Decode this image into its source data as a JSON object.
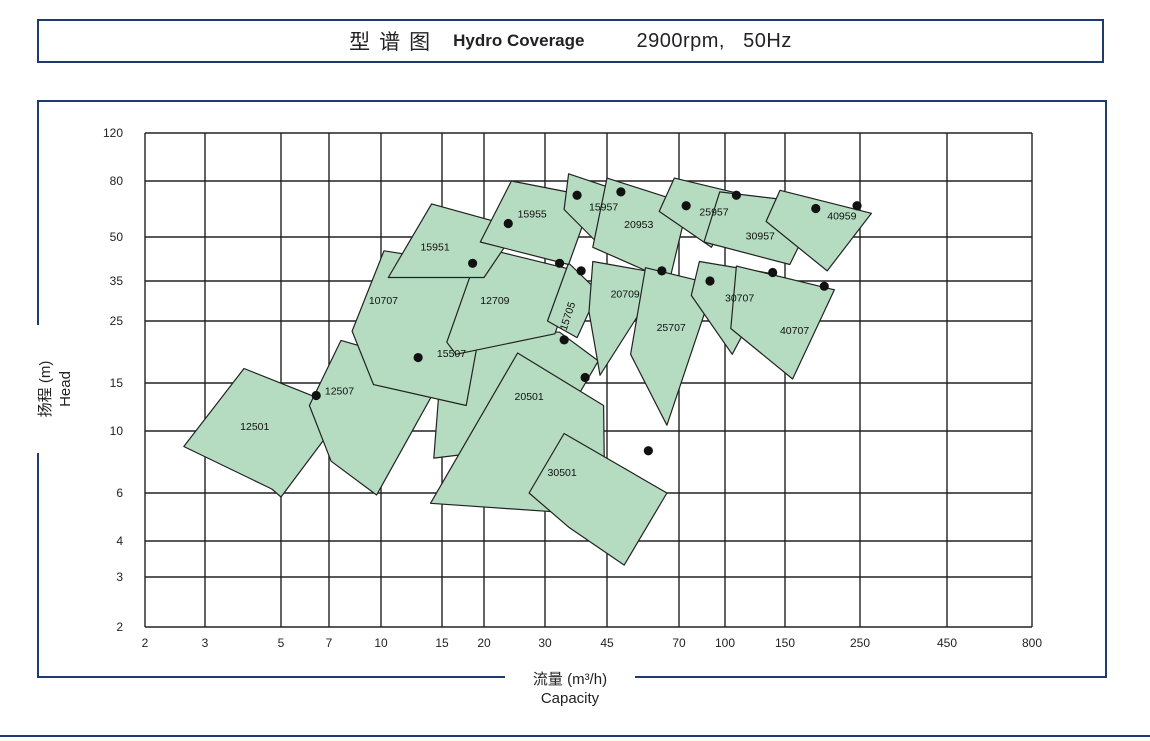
{
  "header": {
    "title_zh": "型谱图",
    "title_en": "Hydro Coverage",
    "spec": "2900rpm,   50Hz"
  },
  "chart_data": {
    "type": "area",
    "title": "Hydro Coverage 2900rpm, 50Hz",
    "xlabel_zh": "流量 (m³/h)",
    "xlabel_en": "Capacity",
    "ylabel_zh": "扬程 (m)",
    "ylabel_en": "Head",
    "x_ticks": [
      2,
      3,
      5,
      7,
      10,
      15,
      20,
      30,
      45,
      70,
      100,
      150,
      250,
      450,
      800
    ],
    "y_ticks": [
      2,
      3,
      4,
      6,
      10,
      15,
      25,
      35,
      50,
      80,
      120
    ],
    "x_range": [
      2,
      800
    ],
    "y_range": [
      2,
      120
    ],
    "grid": true,
    "fill_color": "#b5dcc0",
    "edge_color": "#222222",
    "series": [
      {
        "model": "12501",
        "label_at": [
          3.8,
          10.1
        ],
        "duty_point": [
          6.4,
          13.5
        ],
        "polygon": [
          [
            2.6,
            8.8
          ],
          [
            3.9,
            16.9
          ],
          [
            7.9,
            12.0
          ],
          [
            5.0,
            5.8
          ],
          [
            4.7,
            6.2
          ]
        ]
      },
      {
        "model": "12507",
        "label_at": [
          6.8,
          13.6
        ],
        "duty_point": [
          12.8,
          18.5
        ],
        "polygon": [
          [
            6.1,
            12.4
          ],
          [
            7.6,
            21.3
          ],
          [
            15.4,
            16.6
          ],
          [
            9.7,
            5.9
          ],
          [
            7.1,
            7.8
          ]
        ]
      },
      {
        "model": "15507",
        "label_at": [
          14.5,
          18.6
        ],
        "duty_point": [
          34.0,
          21.4
        ],
        "polygon": [
          [
            14.2,
            8.0
          ],
          [
            15.2,
            23.5
          ],
          [
            33.0,
            22.8
          ],
          [
            42.5,
            18.0
          ],
          [
            31.0,
            9.0
          ]
        ]
      },
      {
        "model": "20501",
        "label_at": [
          24.5,
          13.0
        ],
        "duty_point": [
          39.0,
          15.7
        ],
        "polygon": [
          [
            13.9,
            5.5
          ],
          [
            25.0,
            19.2
          ],
          [
            44.0,
            12.4
          ],
          [
            44.5,
            3.8
          ],
          [
            33.0,
            5.1
          ]
        ]
      },
      {
        "model": "30501",
        "label_at": [
          30.5,
          6.9
        ],
        "duty_point": [
          58.0,
          8.5
        ],
        "polygon": [
          [
            27.0,
            6.0
          ],
          [
            34.0,
            9.8
          ],
          [
            65.0,
            6.0
          ],
          [
            50.0,
            3.3
          ],
          [
            35.0,
            4.5
          ]
        ]
      },
      {
        "model": "10707",
        "label_at": [
          9.2,
          28.9
        ],
        "duty_point": [
          18.5,
          40.4
        ],
        "polygon": [
          [
            8.2,
            23.0
          ],
          [
            10.2,
            44.7
          ],
          [
            21.0,
            39.0
          ],
          [
            17.7,
            12.4
          ],
          [
            9.5,
            14.8
          ]
        ]
      },
      {
        "model": "12709",
        "label_at": [
          19.5,
          28.9
        ],
        "duty_point": [
          33.0,
          40.4
        ],
        "polygon": [
          [
            15.5,
            21.0
          ],
          [
            19.5,
            46.0
          ],
          [
            37.0,
            38.0
          ],
          [
            32.0,
            22.5
          ],
          [
            16.5,
            19.0
          ]
        ]
      },
      {
        "model": "15705",
        "label_at": [
          34.5,
          23.0
        ],
        "duty_point": [
          38.0,
          38.0
        ],
        "polygon": [
          [
            30.5,
            25.0
          ],
          [
            35.0,
            40.5
          ],
          [
            42.5,
            32.0
          ],
          [
            37.0,
            21.8
          ]
        ]
      },
      {
        "model": "15951",
        "label_at": [
          13.0,
          44.8
        ],
        "duty_point": [
          23.5,
          56.0
        ],
        "polygon": [
          [
            10.5,
            36.0
          ],
          [
            14.0,
            66.0
          ],
          [
            25.0,
            54.0
          ],
          [
            20.0,
            36.0
          ]
        ]
      },
      {
        "model": "15955",
        "label_at": [
          25.0,
          59.0
        ],
        "duty_point": [
          37.0,
          71.0
        ],
        "polygon": [
          [
            19.5,
            48.0
          ],
          [
            24.0,
            80.0
          ],
          [
            41.0,
            70.0
          ],
          [
            35.0,
            40.0
          ]
        ]
      },
      {
        "model": "15957",
        "label_at": [
          40.0,
          62.5
        ],
        "duty_point": [
          49.0,
          73.0
        ],
        "polygon": [
          [
            34.0,
            63.0
          ],
          [
            35.0,
            85.0
          ],
          [
            51.0,
            72.0
          ],
          [
            42.0,
            48.0
          ]
        ]
      },
      {
        "model": "20953",
        "label_at": [
          50.0,
          54.0
        ],
        "duty_point": [
          74.0,
          65.0
        ],
        "polygon": [
          [
            41.0,
            46.0
          ],
          [
            45.0,
            82.0
          ],
          [
            75.0,
            66.0
          ],
          [
            66.0,
            35.0
          ]
        ]
      },
      {
        "model": "20709",
        "label_at": [
          46.0,
          30.5
        ],
        "duty_point": [
          63.0,
          38.0
        ],
        "polygon": [
          [
            40.0,
            27.0
          ],
          [
            41.0,
            41.0
          ],
          [
            64.0,
            37.0
          ],
          [
            43.0,
            16.0
          ]
        ]
      },
      {
        "model": "25957",
        "label_at": [
          82.0,
          60.0
        ],
        "duty_point": [
          108.0,
          71.0
        ],
        "polygon": [
          [
            62.0,
            62.0
          ],
          [
            68.0,
            82.0
          ],
          [
            110.0,
            72.0
          ],
          [
            90.0,
            46.0
          ]
        ]
      },
      {
        "model": "25707",
        "label_at": [
          61.0,
          23.0
        ],
        "duty_point": [
          89.0,
          35.0
        ],
        "polygon": [
          [
            52.0,
            19.0
          ],
          [
            57.0,
            39.0
          ],
          [
            92.0,
            34.0
          ],
          [
            65.0,
            10.5
          ]
        ]
      },
      {
        "model": "30957",
        "label_at": [
          115.0,
          49.0
        ],
        "duty_point": [
          185.0,
          63.5
        ],
        "polygon": [
          [
            85.0,
            48.0
          ],
          [
            96.0,
            73.0
          ],
          [
            190.0,
            66.0
          ],
          [
            155.0,
            40.0
          ]
        ]
      },
      {
        "model": "30707",
        "label_at": [
          100.0,
          29.5
        ],
        "duty_point": [
          138.0,
          37.5
        ],
        "polygon": [
          [
            77.0,
            31.0
          ],
          [
            82.0,
            41.0
          ],
          [
            140.0,
            37.0
          ],
          [
            105.0,
            19.0
          ]
        ]
      },
      {
        "model": "40959",
        "label_at": [
          200.0,
          58.0
        ],
        "duty_point": [
          245.0,
          65.0
        ],
        "polygon": [
          [
            132.0,
            57.0
          ],
          [
            145.0,
            74.0
          ],
          [
            270.0,
            61.0
          ],
          [
            200.0,
            38.0
          ]
        ]
      },
      {
        "model": "40707",
        "label_at": [
          145.0,
          22.5
        ],
        "duty_point": [
          196.0,
          33.5
        ],
        "polygon": [
          [
            104.0,
            23.5
          ],
          [
            108.0,
            39.5
          ],
          [
            210.0,
            32.5
          ],
          [
            158.0,
            15.5
          ]
        ]
      }
    ]
  }
}
